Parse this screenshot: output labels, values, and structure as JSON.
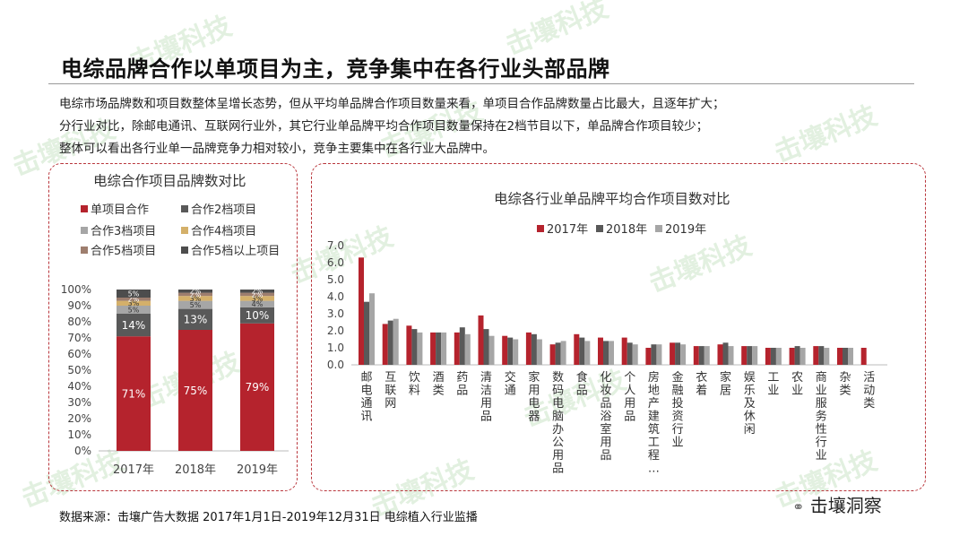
{
  "title": "电综品牌合作以单项目为主，竞争集中在各行业头部品牌",
  "description": [
    "电综市场品牌数和项目数整体呈增长态势，但从平均单品牌合作项目数量来看，单项目合作品牌数量占比最大，且逐年扩大；",
    "分行业对比，除邮电通讯、互联网行业外，其它行业单品牌平均合作项目数量保持在2档节目以下，单品牌合作项目较少；",
    "整体可以看出各行业单一品牌竞争力相对较小，竞争主要集中在各行业大品牌中。"
  ],
  "source": "数据来源：击壤广告大数据 2017年1月1日-2019年12月31日 电综植入行业监播",
  "brand": "击壤洞察",
  "watermark": "击壤科技",
  "colors": {
    "y2017": "#b5232d",
    "y2018": "#595959",
    "y2019": "#a6a6a6",
    "c4": "#d4b06a",
    "c5": "#9e7e6e",
    "c6": "#4d4d4d",
    "panel_border": "#b9363c"
  },
  "left_chart": {
    "title": "电综合作项目品牌数对比",
    "legend": [
      "单项目合作",
      "合作2档项目",
      "合作3档项目",
      "合作4档项目",
      "合作5档项目",
      "合作5档以上项目"
    ],
    "y_ticks": [
      "0%",
      "10%",
      "20%",
      "30%",
      "40%",
      "50%",
      "60%",
      "70%",
      "80%",
      "90%",
      "100%"
    ]
  },
  "right_chart": {
    "title": "电综各行业单品牌平均合作项目数对比",
    "legend": [
      "2017年",
      "2018年",
      "2019年"
    ],
    "y_ticks": [
      "0.0",
      "1.0",
      "2.0",
      "3.0",
      "4.0",
      "5.0",
      "6.0",
      "7.0"
    ]
  },
  "chart_data": [
    {
      "type": "bar",
      "stacked": true,
      "title": "电综合作项目品牌数对比",
      "categories": [
        "2017年",
        "2018年",
        "2019年"
      ],
      "ylim": [
        0,
        100
      ],
      "legend_position": "top",
      "series": [
        {
          "name": "单项目合作",
          "values": [
            71,
            75,
            79
          ],
          "labels": [
            "71%",
            "75%",
            "79%"
          ]
        },
        {
          "name": "合作2档项目",
          "values": [
            14,
            13,
            10
          ],
          "labels": [
            "14%",
            "13%",
            "10%"
          ]
        },
        {
          "name": "合作3档项目",
          "values": [
            5,
            5,
            4
          ],
          "labels": [
            "5%",
            "5%",
            "4%"
          ]
        },
        {
          "name": "合作4档项目",
          "values": [
            3,
            3,
            3
          ],
          "labels": [
            "3%",
            "3%",
            "3%"
          ]
        },
        {
          "name": "合作5档项目",
          "values": [
            2,
            2,
            2
          ],
          "labels": [
            "2%",
            "2%",
            "2%"
          ]
        },
        {
          "name": "合作5档以上项目",
          "values": [
            5,
            2,
            2
          ],
          "labels": [
            "5%",
            "2%",
            "2%"
          ]
        }
      ]
    },
    {
      "type": "bar",
      "title": "电综各行业单品牌平均合作项目数对比",
      "categories": [
        "邮电通讯",
        "互联网",
        "饮料",
        "酒类",
        "药品",
        "清洁用品",
        "交通",
        "家用电器",
        "数码电脑办公用品",
        "食品",
        "化妆品浴室用品",
        "个人用品",
        "房地产建筑工程…",
        "金融投资行业",
        "衣着",
        "家居",
        "娱乐及休闲",
        "工业",
        "农业",
        "商业服务性行业",
        "杂类",
        "活动类"
      ],
      "ylim": [
        0,
        7
      ],
      "legend_position": "top",
      "series": [
        {
          "name": "2017年",
          "values": [
            6.3,
            2.4,
            2.3,
            1.9,
            1.9,
            2.9,
            1.7,
            1.9,
            1.2,
            1.8,
            1.6,
            1.6,
            1.0,
            1.3,
            1.1,
            1.2,
            1.1,
            1.0,
            1.0,
            1.1,
            1.0,
            1.0
          ]
        },
        {
          "name": "2018年",
          "values": [
            3.7,
            2.6,
            2.1,
            1.9,
            2.2,
            2.1,
            1.6,
            1.8,
            1.3,
            1.6,
            1.4,
            1.3,
            1.2,
            1.3,
            1.1,
            1.3,
            1.1,
            1.0,
            1.1,
            1.1,
            1.0,
            null
          ]
        },
        {
          "name": "2019年",
          "values": [
            4.2,
            2.7,
            1.9,
            1.9,
            1.8,
            1.7,
            1.5,
            1.5,
            1.4,
            1.4,
            1.4,
            1.2,
            1.2,
            1.2,
            1.1,
            1.1,
            1.1,
            1.0,
            1.0,
            1.0,
            1.0,
            null
          ]
        }
      ]
    }
  ]
}
